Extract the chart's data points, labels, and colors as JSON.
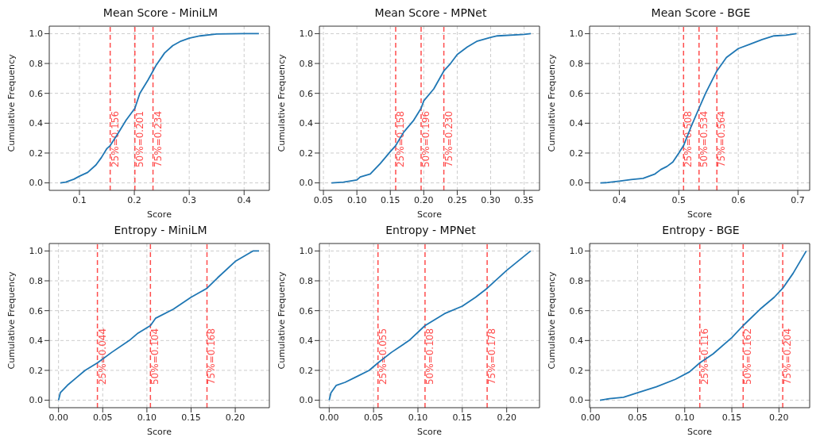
{
  "chart_data": [
    {
      "type": "line",
      "title": "Mean Score - MiniLM",
      "xlabel": "Score",
      "ylabel": "Cumulative Frequency",
      "grid": true,
      "line_style": "solid",
      "xlim": [
        0.045,
        0.446
      ],
      "xticks": [
        0.1,
        0.2,
        0.3,
        0.4
      ],
      "ylim": [
        -0.05,
        1.05
      ],
      "yticks": [
        {
          "value": 0,
          "label": "0.0"
        },
        {
          "value": 0.2,
          "label": "0.2"
        },
        {
          "value": 0.4,
          "label": "0.4"
        },
        {
          "value": 0.6,
          "label": "0.6"
        },
        {
          "value": 0.8,
          "label": "0.8"
        },
        {
          "value": 1,
          "label": "1.0"
        }
      ],
      "series": [
        {
          "color": "#1f77b4",
          "x": [
            0.065,
            0.075,
            0.09,
            0.1,
            0.115,
            0.13,
            0.14,
            0.15,
            0.156,
            0.17,
            0.185,
            0.201,
            0.21,
            0.225,
            0.234,
            0.24,
            0.255,
            0.27,
            0.285,
            0.3,
            0.32,
            0.35,
            0.4,
            0.427
          ],
          "values": [
            0,
            0.005,
            0.025,
            0.045,
            0.07,
            0.12,
            0.17,
            0.23,
            0.25,
            0.33,
            0.42,
            0.5,
            0.6,
            0.69,
            0.75,
            0.79,
            0.87,
            0.92,
            0.95,
            0.97,
            0.985,
            0.998,
            1,
            1
          ]
        }
      ],
      "ref_lines": [
        {
          "axis": "x",
          "value": 0.156,
          "label": "25%=0.156",
          "color": "#ff4d4d",
          "line_style": "dashed"
        },
        {
          "axis": "x",
          "value": 0.201,
          "label": "50%=0.201",
          "color": "#ff4d4d",
          "line_style": "dashed"
        },
        {
          "axis": "x",
          "value": 0.234,
          "label": "75%=0.234",
          "color": "#ff4d4d",
          "line_style": "dashed"
        }
      ]
    },
    {
      "type": "line",
      "title": "Mean Score - MPNet",
      "xlabel": "Score",
      "ylabel": "Cumulative Frequency",
      "grid": true,
      "line_style": "solid",
      "xlim": [
        0.044,
        0.373
      ],
      "xticks": [
        {
          "value": 0.05,
          "label": "0.05"
        },
        {
          "value": 0.1,
          "label": "0.10"
        },
        {
          "value": 0.15,
          "label": "0.15"
        },
        {
          "value": 0.2,
          "label": "0.20"
        },
        {
          "value": 0.25,
          "label": "0.25"
        },
        {
          "value": 0.3,
          "label": "0.30"
        },
        {
          "value": 0.35,
          "label": "0.35"
        }
      ],
      "ylim": [
        -0.05,
        1.05
      ],
      "yticks": [
        {
          "value": 0,
          "label": "0.0"
        },
        {
          "value": 0.2,
          "label": "0.2"
        },
        {
          "value": 0.4,
          "label": "0.4"
        },
        {
          "value": 0.6,
          "label": "0.6"
        },
        {
          "value": 0.8,
          "label": "0.8"
        },
        {
          "value": 1,
          "label": "1.0"
        }
      ],
      "series": [
        {
          "color": "#1f77b4",
          "x": [
            0.062,
            0.08,
            0.1,
            0.105,
            0.12,
            0.135,
            0.15,
            0.158,
            0.17,
            0.185,
            0.196,
            0.2,
            0.215,
            0.23,
            0.24,
            0.25,
            0.265,
            0.28,
            0.3,
            0.31,
            0.35,
            0.36
          ],
          "values": [
            0,
            0.005,
            0.02,
            0.04,
            0.06,
            0.13,
            0.21,
            0.25,
            0.34,
            0.42,
            0.5,
            0.55,
            0.63,
            0.75,
            0.8,
            0.86,
            0.91,
            0.95,
            0.975,
            0.985,
            0.995,
            1
          ]
        }
      ],
      "ref_lines": [
        {
          "axis": "x",
          "value": 0.158,
          "label": "25%=0.158",
          "color": "#ff4d4d",
          "line_style": "dashed"
        },
        {
          "axis": "x",
          "value": 0.196,
          "label": "50%=0.196",
          "color": "#ff4d4d",
          "line_style": "dashed"
        },
        {
          "axis": "x",
          "value": 0.23,
          "label": "75%=0.230",
          "color": "#ff4d4d",
          "line_style": "dashed"
        }
      ]
    },
    {
      "type": "line",
      "title": "Mean Score - BGE",
      "xlabel": "Score",
      "ylabel": "Cumulative Frequency",
      "grid": true,
      "line_style": "solid",
      "xlim": [
        0.35,
        0.72
      ],
      "xticks": [
        0.4,
        0.5,
        0.6,
        0.7
      ],
      "ylim": [
        -0.05,
        1.05
      ],
      "yticks": [
        {
          "value": 0,
          "label": "0.0"
        },
        {
          "value": 0.2,
          "label": "0.2"
        },
        {
          "value": 0.4,
          "label": "0.4"
        },
        {
          "value": 0.6,
          "label": "0.6"
        },
        {
          "value": 0.8,
          "label": "0.8"
        },
        {
          "value": 1,
          "label": "1.0"
        }
      ],
      "series": [
        {
          "color": "#1f77b4",
          "x": [
            0.368,
            0.38,
            0.4,
            0.42,
            0.44,
            0.45,
            0.46,
            0.47,
            0.48,
            0.49,
            0.5,
            0.508,
            0.52,
            0.534,
            0.545,
            0.564,
            0.58,
            0.6,
            0.62,
            0.64,
            0.66,
            0.68,
            0.698
          ],
          "values": [
            0,
            0.002,
            0.012,
            0.022,
            0.03,
            0.045,
            0.06,
            0.09,
            0.11,
            0.14,
            0.2,
            0.25,
            0.37,
            0.5,
            0.6,
            0.75,
            0.84,
            0.9,
            0.93,
            0.96,
            0.985,
            0.99,
            1
          ]
        }
      ],
      "ref_lines": [
        {
          "axis": "x",
          "value": 0.508,
          "label": "25%=0.508",
          "color": "#ff4d4d",
          "line_style": "dashed"
        },
        {
          "axis": "x",
          "value": 0.534,
          "label": "50%=0.534",
          "color": "#ff4d4d",
          "line_style": "dashed"
        },
        {
          "axis": "x",
          "value": 0.564,
          "label": "75%=0.564",
          "color": "#ff4d4d",
          "line_style": "dashed"
        }
      ]
    },
    {
      "type": "line",
      "title": "Entropy - MiniLM",
      "xlabel": "Score",
      "ylabel": "Cumulative Frequency",
      "grid": true,
      "line_style": "solid",
      "xlim": [
        -0.0105,
        0.2386
      ],
      "xticks": [
        {
          "value": 0,
          "label": "0.00"
        },
        {
          "value": 0.05,
          "label": "0.05"
        },
        {
          "value": 0.1,
          "label": "0.10"
        },
        {
          "value": 0.15,
          "label": "0.15"
        },
        {
          "value": 0.2,
          "label": "0.20"
        }
      ],
      "ylim": [
        -0.05,
        1.05
      ],
      "yticks": [
        {
          "value": 0,
          "label": "0.0"
        },
        {
          "value": 0.2,
          "label": "0.2"
        },
        {
          "value": 0.4,
          "label": "0.4"
        },
        {
          "value": 0.6,
          "label": "0.6"
        },
        {
          "value": 0.8,
          "label": "0.8"
        },
        {
          "value": 1,
          "label": "1.0"
        }
      ],
      "series": [
        {
          "color": "#1f77b4",
          "x": [
            0,
            0.002,
            0.01,
            0.02,
            0.03,
            0.044,
            0.06,
            0.08,
            0.09,
            0.104,
            0.11,
            0.13,
            0.15,
            0.168,
            0.18,
            0.2,
            0.22,
            0.227
          ],
          "values": [
            0,
            0.05,
            0.1,
            0.15,
            0.2,
            0.25,
            0.32,
            0.4,
            0.45,
            0.5,
            0.55,
            0.61,
            0.69,
            0.75,
            0.82,
            0.93,
            1,
            1
          ]
        }
      ],
      "ref_lines": [
        {
          "axis": "x",
          "value": 0.044,
          "label": "25%=0.044",
          "color": "#ff4d4d",
          "line_style": "dashed"
        },
        {
          "axis": "x",
          "value": 0.104,
          "label": "50%=0.104",
          "color": "#ff4d4d",
          "line_style": "dashed"
        },
        {
          "axis": "x",
          "value": 0.168,
          "label": "75%=0.168",
          "color": "#ff4d4d",
          "line_style": "dashed"
        }
      ]
    },
    {
      "type": "line",
      "title": "Entropy - MPNet",
      "xlabel": "Score",
      "ylabel": "Cumulative Frequency",
      "grid": true,
      "line_style": "solid",
      "xlim": [
        -0.011,
        0.237
      ],
      "xticks": [
        {
          "value": 0,
          "label": "0.00"
        },
        {
          "value": 0.05,
          "label": "0.05"
        },
        {
          "value": 0.1,
          "label": "0.10"
        },
        {
          "value": 0.15,
          "label": "0.15"
        },
        {
          "value": 0.2,
          "label": "0.20"
        }
      ],
      "ylim": [
        -0.05,
        1.05
      ],
      "yticks": [
        {
          "value": 0,
          "label": "0.0"
        },
        {
          "value": 0.2,
          "label": "0.2"
        },
        {
          "value": 0.4,
          "label": "0.4"
        },
        {
          "value": 0.6,
          "label": "0.6"
        },
        {
          "value": 0.8,
          "label": "0.8"
        },
        {
          "value": 1,
          "label": "1.0"
        }
      ],
      "series": [
        {
          "color": "#1f77b4",
          "x": [
            0,
            0.002,
            0.008,
            0.018,
            0.03,
            0.045,
            0.055,
            0.07,
            0.09,
            0.108,
            0.13,
            0.15,
            0.165,
            0.178,
            0.2,
            0.227
          ],
          "values": [
            0,
            0.05,
            0.1,
            0.12,
            0.155,
            0.2,
            0.25,
            0.32,
            0.4,
            0.5,
            0.58,
            0.63,
            0.69,
            0.75,
            0.87,
            1
          ]
        }
      ],
      "ref_lines": [
        {
          "axis": "x",
          "value": 0.055,
          "label": "25%=0.055",
          "color": "#ff4d4d",
          "line_style": "dashed"
        },
        {
          "axis": "x",
          "value": 0.108,
          "label": "50%=0.108",
          "color": "#ff4d4d",
          "line_style": "dashed"
        },
        {
          "axis": "x",
          "value": 0.178,
          "label": "75%=0.178",
          "color": "#ff4d4d",
          "line_style": "dashed"
        }
      ]
    },
    {
      "type": "line",
      "title": "Entropy - BGE",
      "xlabel": "Score",
      "ylabel": "Cumulative Frequency",
      "grid": true,
      "line_style": "solid",
      "xlim": [
        -0.001,
        0.2326
      ],
      "xticks": [
        {
          "value": 0,
          "label": "0.00"
        },
        {
          "value": 0.05,
          "label": "0.05"
        },
        {
          "value": 0.1,
          "label": "0.10"
        },
        {
          "value": 0.15,
          "label": "0.15"
        },
        {
          "value": 0.2,
          "label": "0.20"
        }
      ],
      "ylim": [
        -0.05,
        1.05
      ],
      "yticks": [
        {
          "value": 0,
          "label": "0.0"
        },
        {
          "value": 0.2,
          "label": "0.2"
        },
        {
          "value": 0.4,
          "label": "0.4"
        },
        {
          "value": 0.6,
          "label": "0.6"
        },
        {
          "value": 0.8,
          "label": "0.8"
        },
        {
          "value": 1,
          "label": "1.0"
        }
      ],
      "series": [
        {
          "color": "#1f77b4",
          "x": [
            0.01,
            0.02,
            0.035,
            0.05,
            0.07,
            0.09,
            0.105,
            0.116,
            0.13,
            0.15,
            0.162,
            0.18,
            0.195,
            0.204,
            0.215,
            0.229
          ],
          "values": [
            0,
            0.01,
            0.02,
            0.05,
            0.09,
            0.14,
            0.19,
            0.25,
            0.31,
            0.42,
            0.5,
            0.61,
            0.69,
            0.75,
            0.85,
            1
          ]
        }
      ],
      "ref_lines": [
        {
          "axis": "x",
          "value": 0.116,
          "label": "25%=0.116",
          "color": "#ff4d4d",
          "line_style": "dashed"
        },
        {
          "axis": "x",
          "value": 0.162,
          "label": "50%=0.162",
          "color": "#ff4d4d",
          "line_style": "dashed"
        },
        {
          "axis": "x",
          "value": 0.204,
          "label": "75%=0.204",
          "color": "#ff4d4d",
          "line_style": "dashed"
        }
      ]
    }
  ]
}
